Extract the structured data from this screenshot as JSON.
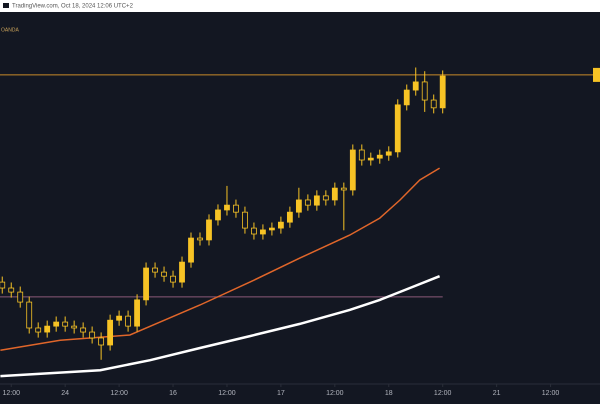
{
  "chart_data": {
    "type": "candlestick",
    "source": "TradingView.com, Oct 18, 2024 12:06 UTC+2",
    "symbol": "OANDA",
    "x": [
      10,
      12,
      14,
      16,
      18,
      20,
      22,
      24,
      26,
      28,
      30,
      32,
      34,
      36,
      38,
      40,
      42,
      44,
      46,
      48,
      50,
      52,
      54,
      56,
      58,
      60,
      62,
      64,
      66,
      68,
      70,
      72,
      74,
      76,
      78,
      80,
      82,
      84,
      86,
      88,
      90,
      92,
      94,
      96,
      98,
      100,
      102,
      104,
      106,
      108
    ],
    "open": [
      2657.0,
      2655.4,
      2654.3,
      2651.6,
      2644.6,
      2643.5,
      2645.1,
      2646.2,
      2645.1,
      2644.6,
      2643.5,
      2641.9,
      2640.0,
      2646.7,
      2647.8,
      2645.1,
      2652.2,
      2660.8,
      2659.7,
      2658.6,
      2657.0,
      2662.4,
      2668.9,
      2668.4,
      2673.8,
      2676.5,
      2677.8,
      2675.9,
      2671.6,
      2670.0,
      2671.1,
      2671.6,
      2673.2,
      2675.9,
      2679.2,
      2677.8,
      2680.3,
      2679.2,
      2682.4,
      2681.9,
      2692.7,
      2690.0,
      2690.5,
      2691.3,
      2692.2,
      2704.9,
      2708.9,
      2711.1,
      2706.2,
      2704.1
    ],
    "high": [
      2658.5,
      2656.9,
      2655.8,
      2653.1,
      2646.1,
      2646.6,
      2647.7,
      2647.7,
      2646.6,
      2646.1,
      2645.0,
      2643.4,
      2648.2,
      2649.3,
      2649.3,
      2653.7,
      2662.3,
      2662.3,
      2661.2,
      2660.1,
      2663.9,
      2670.4,
      2670.4,
      2675.3,
      2678.0,
      2683.0,
      2679.3,
      2677.4,
      2673.1,
      2672.6,
      2673.1,
      2674.7,
      2677.4,
      2682.5,
      2680.7,
      2681.8,
      2681.8,
      2683.9,
      2683.9,
      2694.2,
      2694.2,
      2692.0,
      2692.8,
      2693.7,
      2706.4,
      2710.4,
      2715.0,
      2714.0,
      2707.7,
      2714.2
    ],
    "low": [
      2653.9,
      2652.8,
      2650.1,
      2643.1,
      2642.0,
      2642.0,
      2643.6,
      2643.6,
      2643.1,
      2642.0,
      2640.4,
      2636.0,
      2638.5,
      2645.2,
      2643.6,
      2643.6,
      2650.7,
      2658.2,
      2657.1,
      2655.5,
      2655.5,
      2660.9,
      2666.9,
      2666.9,
      2672.3,
      2675.0,
      2674.4,
      2670.1,
      2668.5,
      2668.5,
      2669.6,
      2670.1,
      2671.7,
      2674.4,
      2676.3,
      2676.3,
      2677.7,
      2677.7,
      2671.0,
      2680.4,
      2688.5,
      2688.5,
      2689.0,
      2689.8,
      2690.7,
      2703.4,
      2707.4,
      2703.0,
      2702.6,
      2702.6
    ],
    "close": [
      2655.4,
      2654.3,
      2651.6,
      2644.6,
      2643.5,
      2645.1,
      2646.2,
      2645.1,
      2644.6,
      2643.5,
      2641.9,
      2640.0,
      2646.7,
      2647.8,
      2645.1,
      2652.2,
      2660.8,
      2659.7,
      2658.6,
      2657.0,
      2662.4,
      2668.9,
      2668.4,
      2673.8,
      2676.5,
      2677.8,
      2675.9,
      2671.6,
      2670.0,
      2671.1,
      2671.6,
      2673.2,
      2675.9,
      2679.2,
      2677.8,
      2680.3,
      2679.2,
      2682.4,
      2681.9,
      2692.7,
      2690.0,
      2690.5,
      2691.3,
      2692.2,
      2704.9,
      2708.9,
      2711.1,
      2706.2,
      2704.1,
      2712.7
    ],
    "up_color": "#f7c325",
    "down_color": "#131722",
    "lines": [
      {
        "color": "#e0662a",
        "x": [
          9.6,
          22.9,
          38.4,
          45.1,
          54,
          65.1,
          76.2,
          87.3,
          94,
          98.5,
          102.9,
          107.3
        ],
        "values": [
          2638.6,
          2641.3,
          2642.7,
          2646.2,
          2650.8,
          2657.0,
          2663.5,
          2669.7,
          2674.3,
          2679.2,
          2684.6,
          2687.8
        ]
      },
      {
        "color": "#ffffff",
        "x": [
          9.6,
          31.8,
          42.9,
          54,
          65.1,
          76.2,
          87.3,
          94,
          100.7,
          107.3
        ],
        "values": [
          2631.6,
          2633.2,
          2635.9,
          2639.2,
          2642.4,
          2645.7,
          2649.5,
          2652.2,
          2655.4,
          2658.6
        ]
      }
    ],
    "levels": [
      {
        "value": 2713.0,
        "color": "#c98a2a"
      },
      {
        "value": 2653.0,
        "color": "#8c5a7a"
      }
    ],
    "xlim": [
      9.5,
      143
    ],
    "ylim": [
      2630,
      2730
    ],
    "xticks": [
      {
        "value": 12,
        "label": "12:00"
      },
      24,
      {
        "value": 36,
        "label": "12:00"
      },
      {
        "value": 48,
        "label": "16"
      },
      {
        "value": 60,
        "label": "12:00"
      },
      {
        "value": 72,
        "label": "17"
      },
      {
        "value": 84,
        "label": "12:00"
      },
      {
        "value": 96,
        "label": "18"
      },
      {
        "value": 108,
        "label": "12:00"
      },
      {
        "value": 120,
        "label": "21"
      },
      {
        "value": 132,
        "label": "12:00"
      }
    ]
  }
}
